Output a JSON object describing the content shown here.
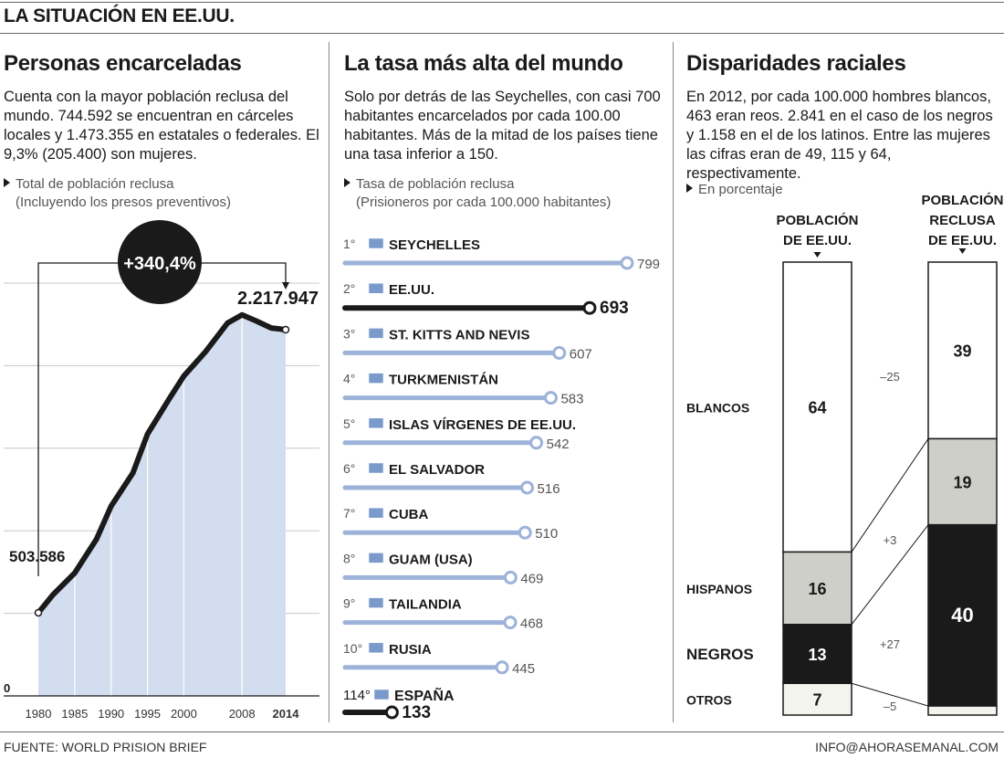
{
  "page": {
    "title": "LA SITUACIÓN EN EE.UU.",
    "source": "FUENTE: WORLD PRISION BRIEF",
    "contact": "INFO@AHORASEMANAL.COM"
  },
  "panels": [
    {
      "heading": "Personas encarceladas",
      "text": "Cuenta con la mayor población reclusa del mundo. 744.592 se encuentran en cárceles locales y 1.473.355 en estatales o federales. El 9,3% (205.400) son mujeres.",
      "note_line1": "Total de población reclusa",
      "note_line2": "(Incluyendo los presos preventivos)"
    },
    {
      "heading": "La tasa más alta del mundo",
      "text": "Solo por detrás de las Seychelles, con casi 700 habitantes encarcelados por cada 100.00 habitantes. Más de la mitad de los países tiene una tasa inferior a 150.",
      "note_line1": "Tasa de población reclusa",
      "note_line2": "(Prisioneros por cada 100.000 habitantes)"
    },
    {
      "heading": "Disparidades raciales",
      "text": "En 2012, por cada 100.000 hombres blancos, 463 eran reos. 2.841 en el caso de los negros y 1.158 en el de los latinos. Entre las mujeres las cifras eran de 49, 115 y 64, respectivamente.",
      "note_line1": "En porcentaje"
    }
  ],
  "colors": {
    "ink": "#1a1a1a",
    "area_fill": "#d3ddf0",
    "rate_bar": "#9db2d9",
    "grey_segment": "#cfcfca",
    "light_segment": "#f3f4ee"
  },
  "chart_data": [
    {
      "type": "area",
      "x": [
        1980,
        1982,
        1985,
        1988,
        1990,
        1993,
        1995,
        1998,
        2000,
        2003,
        2006,
        2008,
        2010,
        2012,
        2014
      ],
      "y": [
        503586,
        612000,
        744208,
        950000,
        1148702,
        1350000,
        1585586,
        1800000,
        1937482,
        2085000,
        2258000,
        2307504,
        2270142,
        2228424,
        2217947
      ],
      "xticks": [
        "1980",
        "1985",
        "1990",
        "1995",
        "2000",
        "2008",
        "2014"
      ],
      "zero_label": "0",
      "start_label": "503.586",
      "end_label": "2.217.947",
      "growth_label": "+340,4%",
      "ylim": [
        0,
        2500000
      ],
      "grid": true
    },
    {
      "type": "bar",
      "orientation": "horizontal",
      "rows": [
        {
          "rank": "1°",
          "country": "SEYCHELLES",
          "value": 799,
          "flag": "seychelles-flag"
        },
        {
          "rank": "2°",
          "country": "EE.UU.",
          "value": 693,
          "flag": "usa-flag",
          "highlight": true
        },
        {
          "rank": "3°",
          "country": "ST. KITTS AND NEVIS",
          "value": 607,
          "flag": "saint-kitts-flag"
        },
        {
          "rank": "4°",
          "country": "TURKMENISTÁN",
          "value": 583,
          "flag": "turkmenistan-flag"
        },
        {
          "rank": "5°",
          "country": "ISLAS VÍRGENES DE EE.UU.",
          "value": 542,
          "flag": "us-virgin-islands-flag"
        },
        {
          "rank": "6°",
          "country": "EL SALVADOR",
          "value": 516,
          "flag": "el-salvador-flag"
        },
        {
          "rank": "7°",
          "country": "CUBA",
          "value": 510,
          "flag": "cuba-flag"
        },
        {
          "rank": "8°",
          "country": "GUAM (USA)",
          "value": 469,
          "flag": "guam-flag"
        },
        {
          "rank": "9°",
          "country": "TAILANDIA",
          "value": 468,
          "flag": "thailand-flag"
        },
        {
          "rank": "10°",
          "country": "RUSIA",
          "value": 445,
          "flag": "russia-flag"
        },
        {
          "rank": "114°",
          "country": "ESPAÑA",
          "value": 133,
          "flag": "spain-flag",
          "highlight": true
        }
      ]
    },
    {
      "type": "bar",
      "stacked": true,
      "columns": [
        "POBLACIÓN DE EE.UU.",
        "POBLACIÓN RECLUSA DE EE.UU."
      ],
      "column_lines": [
        [
          "POBLACIÓN",
          "DE EE.UU."
        ],
        [
          "POBLACIÓN",
          "RECLUSA",
          "DE EE.UU."
        ]
      ],
      "series": [
        {
          "name": "BLANCOS",
          "values": [
            64,
            39
          ],
          "diff": "–25",
          "fill": "#ffffff"
        },
        {
          "name": "HISPANOS",
          "values": [
            16,
            19
          ],
          "diff": "+3",
          "fill": "#cfcfca"
        },
        {
          "name": "NEGROS",
          "values": [
            13,
            40
          ],
          "diff": "+27",
          "fill": "#1a1a1a"
        },
        {
          "name": "OTROS",
          "values": [
            7,
            2
          ],
          "diff": "–5",
          "fill": "#f3f4ee"
        }
      ]
    }
  ]
}
